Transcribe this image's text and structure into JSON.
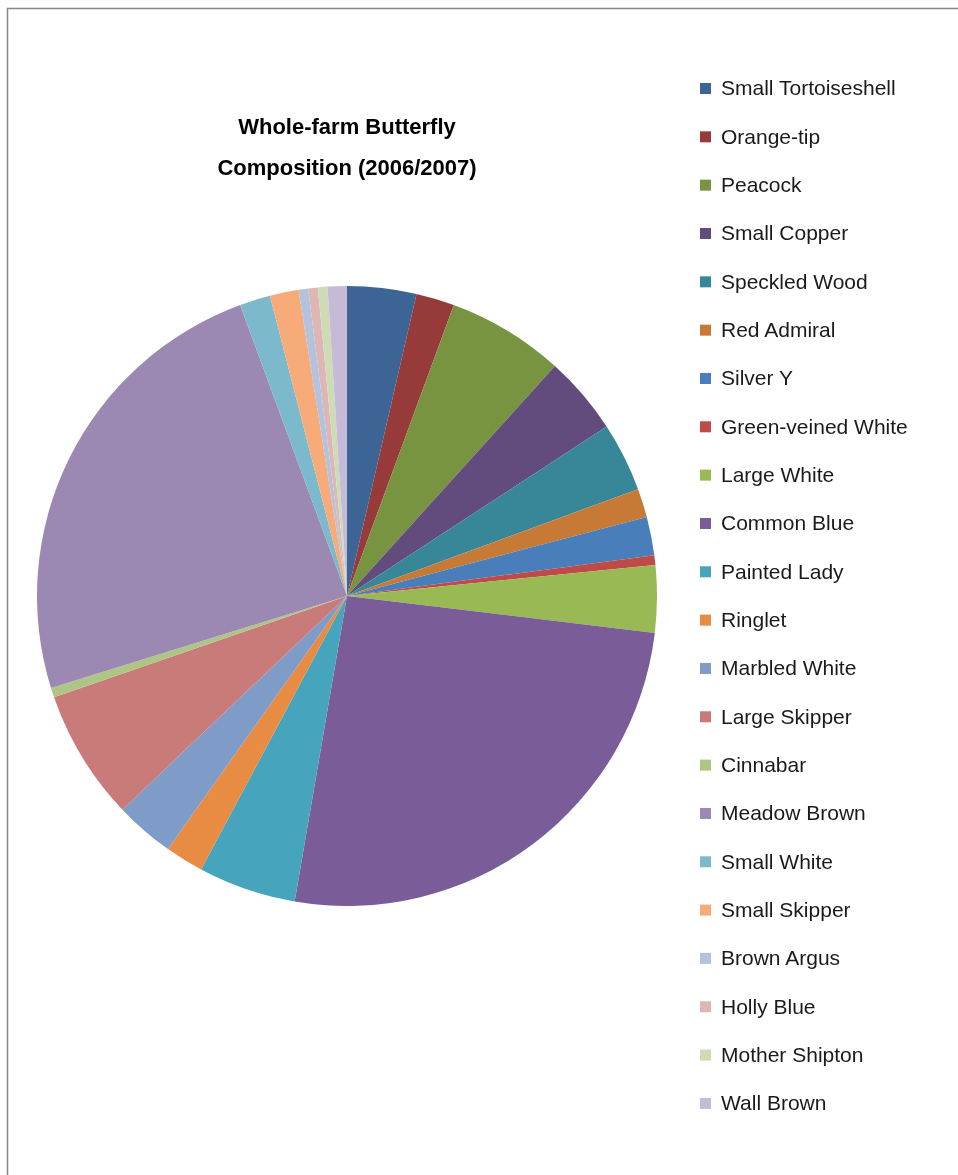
{
  "chart_data": {
    "type": "pie",
    "title": "Whole-farm Butterfly Composition (2006/2007)",
    "categories": [
      "Small Tortoiseshell",
      "Orange-tip",
      "Peacock",
      "Small Copper",
      "Speckled Wood",
      "Red Admiral",
      "Silver Y",
      "Green-veined White",
      "Large White",
      "Common Blue",
      "Painted Lady",
      "Ringlet",
      "Marbled White",
      "Large Skipper",
      "Cinnabar",
      "Meadow Brown",
      "Small White",
      "Small Skipper",
      "Brown Argus",
      "Holly Blue",
      "Mother Shipton",
      "Wall Brown"
    ],
    "values": [
      3.6,
      2.0,
      6.1,
      4.1,
      3.6,
      1.5,
      2.0,
      0.5,
      3.5,
      25.8,
      5.1,
      2.0,
      3.1,
      6.8,
      0.5,
      24.2,
      1.6,
      1.5,
      0.5,
      0.5,
      0.5,
      1.0
    ],
    "colors": [
      "#3c6595",
      "#963b3a",
      "#789440",
      "#624c7d",
      "#378799",
      "#c77a35",
      "#4a7ebb",
      "#be4b48",
      "#98b954",
      "#7a5c98",
      "#46a5bc",
      "#e88c44",
      "#7f9cc8",
      "#c97b79",
      "#adc585",
      "#9b88b3",
      "#7cb9cc",
      "#f7ab79",
      "#b4c3dd",
      "#ddb6b5",
      "#cedcb6",
      "#c5bbd6"
    ],
    "legend": "right"
  }
}
